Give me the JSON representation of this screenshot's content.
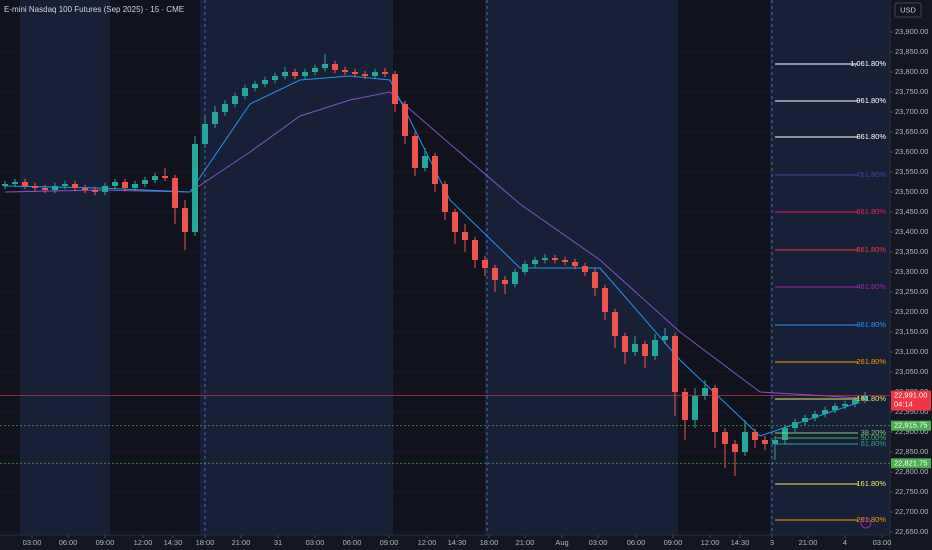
{
  "chart_data": {
    "type": "candlestick",
    "title": "E-mini Nasdaq 100 Futures (Sep 2025) · 15 · CME",
    "currency": "USD",
    "up_color": "#26a69a",
    "down_color": "#ef5350",
    "xlim": [
      0,
      890
    ],
    "ylim": [
      22642.5,
      23980
    ],
    "xticks": [
      {
        "value": 32,
        "label": "03:00"
      },
      {
        "value": 68,
        "label": "06:00"
      },
      {
        "value": 105,
        "label": "09:00"
      },
      {
        "value": 143,
        "label": "12:00"
      },
      {
        "value": 173,
        "label": "14:30"
      },
      {
        "value": 205,
        "label": "18:00"
      },
      {
        "value": 241,
        "label": "21:00"
      },
      {
        "value": 278,
        "label": "31"
      },
      {
        "value": 315,
        "label": "03:00"
      },
      {
        "value": 352,
        "label": "06:00"
      },
      {
        "value": 389,
        "label": "09:00"
      },
      {
        "value": 427,
        "label": "12:00"
      },
      {
        "value": 457,
        "label": "14:30"
      },
      {
        "value": 489,
        "label": "18:00"
      },
      {
        "value": 525,
        "label": "21:00"
      },
      {
        "value": 562,
        "label": "Aug"
      },
      {
        "value": 598,
        "label": "03:00"
      },
      {
        "value": 636,
        "label": "06:00"
      },
      {
        "value": 673,
        "label": "09:00"
      },
      {
        "value": 710,
        "label": "12:00"
      },
      {
        "value": 740,
        "label": "14:30"
      },
      {
        "value": 772,
        "label": "3"
      },
      {
        "value": 808,
        "label": "21:00"
      },
      {
        "value": 845,
        "label": "4"
      },
      {
        "value": 882,
        "label": "03:00"
      }
    ],
    "yticks": [
      {
        "value": 23900,
        "label": "23,900.00"
      },
      {
        "value": 23850,
        "label": "23,850.00"
      },
      {
        "value": 23800,
        "label": "23,800.00"
      },
      {
        "value": 23750,
        "label": "23,750.00"
      },
      {
        "value": 23700,
        "label": "23,700.00"
      },
      {
        "value": 23650,
        "label": "23,650.00"
      },
      {
        "value": 23600,
        "label": "23,600.00"
      },
      {
        "value": 23550,
        "label": "23,550.00"
      },
      {
        "value": 23500,
        "label": "23,500.00"
      },
      {
        "value": 23450,
        "label": "23,450.00"
      },
      {
        "value": 23400,
        "label": "23,400.00"
      },
      {
        "value": 23350,
        "label": "23,350.00"
      },
      {
        "value": 23300,
        "label": "23,300.00"
      },
      {
        "value": 23250,
        "label": "23,250.00"
      },
      {
        "value": 23200,
        "label": "23,200.00"
      },
      {
        "value": 23150,
        "label": "23,150.00"
      },
      {
        "value": 23100,
        "label": "23,100.00"
      },
      {
        "value": 23050,
        "label": "23,050.00"
      },
      {
        "value": 23000,
        "label": "23,000.00"
      },
      {
        "value": 22950,
        "label": "22,950.00"
      },
      {
        "value": 22900,
        "label": "22,900.00"
      },
      {
        "value": 22850,
        "label": "22,850.00"
      },
      {
        "value": 22800,
        "label": "22,800.00"
      },
      {
        "value": 22750,
        "label": "22,750.00"
      },
      {
        "value": 22700,
        "label": "22,700.00"
      },
      {
        "value": 22650,
        "label": "22,650.00"
      }
    ],
    "x": [
      5,
      15,
      25,
      35,
      45,
      55,
      65,
      75,
      85,
      95,
      105,
      115,
      125,
      135,
      145,
      155,
      165,
      175,
      185,
      195,
      205,
      215,
      225,
      235,
      245,
      255,
      265,
      275,
      285,
      295,
      305,
      315,
      325,
      335,
      345,
      355,
      365,
      375,
      385,
      395,
      405,
      415,
      425,
      435,
      445,
      455,
      465,
      475,
      485,
      495,
      505,
      515,
      525,
      535,
      545,
      555,
      565,
      575,
      585,
      595,
      605,
      615,
      625,
      635,
      645,
      655,
      665,
      675,
      685,
      695,
      705,
      715,
      725,
      735,
      745,
      755,
      765,
      775,
      785,
      795,
      805,
      815,
      825,
      835,
      845,
      855,
      865
    ],
    "ohlc": [
      [
        23515,
        23528,
        23507,
        23520
      ],
      [
        23520,
        23533,
        23512,
        23525
      ],
      [
        23525,
        23533,
        23507,
        23515
      ],
      [
        23515,
        23523,
        23502,
        23510
      ],
      [
        23510,
        23518,
        23497,
        23505
      ],
      [
        23505,
        23523,
        23497,
        23515
      ],
      [
        23515,
        23528,
        23507,
        23520
      ],
      [
        23520,
        23528,
        23502,
        23510
      ],
      [
        23510,
        23518,
        23497,
        23505
      ],
      [
        23505,
        23513,
        23492,
        23500
      ],
      [
        23500,
        23523,
        23492,
        23515
      ],
      [
        23515,
        23533,
        23507,
        23525
      ],
      [
        23525,
        23533,
        23502,
        23510
      ],
      [
        23510,
        23528,
        23502,
        23520
      ],
      [
        23520,
        23538,
        23512,
        23530
      ],
      [
        23530,
        23548,
        23522,
        23540
      ],
      [
        23540,
        23560,
        23527,
        23535
      ],
      [
        23535,
        23543,
        23420,
        23460
      ],
      [
        23460,
        23480,
        23355,
        23400
      ],
      [
        23400,
        23640,
        23390,
        23620
      ],
      [
        23620,
        23690,
        23610,
        23670
      ],
      [
        23670,
        23715,
        23660,
        23700
      ],
      [
        23700,
        23730,
        23690,
        23720
      ],
      [
        23720,
        23748,
        23712,
        23740
      ],
      [
        23740,
        23768,
        23732,
        23760
      ],
      [
        23760,
        23778,
        23752,
        23770
      ],
      [
        23770,
        23788,
        23762,
        23780
      ],
      [
        23780,
        23798,
        23772,
        23790
      ],
      [
        23790,
        23812,
        23782,
        23800
      ],
      [
        23800,
        23808,
        23782,
        23790
      ],
      [
        23790,
        23808,
        23782,
        23800
      ],
      [
        23800,
        23818,
        23792,
        23810
      ],
      [
        23810,
        23845,
        23802,
        23820
      ],
      [
        23820,
        23828,
        23797,
        23805
      ],
      [
        23805,
        23813,
        23792,
        23800
      ],
      [
        23800,
        23808,
        23787,
        23795
      ],
      [
        23795,
        23803,
        23782,
        23790
      ],
      [
        23790,
        23808,
        23782,
        23800
      ],
      [
        23800,
        23810,
        23787,
        23795
      ],
      [
        23795,
        23803,
        23700,
        23720
      ],
      [
        23720,
        23728,
        23620,
        23640
      ],
      [
        23640,
        23650,
        23540,
        23560
      ],
      [
        23560,
        23610,
        23552,
        23590
      ],
      [
        23590,
        23598,
        23500,
        23520
      ],
      [
        23520,
        23528,
        23430,
        23450
      ],
      [
        23450,
        23458,
        23370,
        23400
      ],
      [
        23400,
        23420,
        23350,
        23380
      ],
      [
        23380,
        23388,
        23310,
        23330
      ],
      [
        23330,
        23340,
        23290,
        23310
      ],
      [
        23310,
        23318,
        23250,
        23280
      ],
      [
        23280,
        23290,
        23245,
        23270
      ],
      [
        23270,
        23308,
        23262,
        23300
      ],
      [
        23300,
        23328,
        23292,
        23320
      ],
      [
        23320,
        23338,
        23312,
        23330
      ],
      [
        23330,
        23345,
        23322,
        23335
      ],
      [
        23335,
        23343,
        23322,
        23330
      ],
      [
        23330,
        23338,
        23317,
        23325
      ],
      [
        23325,
        23333,
        23307,
        23315
      ],
      [
        23315,
        23323,
        23290,
        23300
      ],
      [
        23300,
        23308,
        23240,
        23260
      ],
      [
        23260,
        23268,
        23180,
        23200
      ],
      [
        23200,
        23208,
        23110,
        23140
      ],
      [
        23140,
        23148,
        23070,
        23100
      ],
      [
        23100,
        23140,
        23090,
        23120
      ],
      [
        23120,
        23128,
        23060,
        23090
      ],
      [
        23090,
        23145,
        23080,
        23130
      ],
      [
        23130,
        23160,
        23120,
        23140
      ],
      [
        23140,
        23148,
        22940,
        23000
      ],
      [
        23000,
        23010,
        22880,
        22930
      ],
      [
        22930,
        23010,
        22910,
        22990
      ],
      [
        22990,
        23030,
        22980,
        23010
      ],
      [
        23010,
        23018,
        22860,
        22900
      ],
      [
        22900,
        22910,
        22810,
        22870
      ],
      [
        22870,
        22880,
        22790,
        22850
      ],
      [
        22850,
        22930,
        22840,
        22900
      ],
      [
        22900,
        22908,
        22860,
        22880
      ],
      [
        22880,
        22890,
        22855,
        22870
      ],
      [
        22870,
        22890,
        22830,
        22880
      ],
      [
        22880,
        22918,
        22870,
        22910
      ],
      [
        22910,
        22933,
        22900,
        22925
      ],
      [
        22925,
        22943,
        22917,
        22935
      ],
      [
        22935,
        22953,
        22927,
        22945
      ],
      [
        22945,
        22963,
        22937,
        22955
      ],
      [
        22955,
        22973,
        22947,
        22965
      ],
      [
        22965,
        22978,
        22957,
        22970
      ],
      [
        22970,
        22988,
        22962,
        22980
      ],
      [
        22980,
        23000,
        22972,
        22991
      ]
    ],
    "moving_averages": [
      {
        "color": "#7e57c2",
        "x": [
          5,
          100,
          190,
          250,
          300,
          350,
          390,
          450,
          520,
          600,
          680,
          760,
          860
        ],
        "values": [
          23500,
          23505,
          23500,
          23600,
          23690,
          23730,
          23750,
          23620,
          23470,
          23330,
          23150,
          23000,
          22985
        ]
      },
      {
        "color": "#2196f3",
        "x": [
          5,
          100,
          190,
          250,
          300,
          350,
          390,
          450,
          520,
          600,
          680,
          760,
          860
        ],
        "values": [
          23515,
          23510,
          23500,
          23720,
          23780,
          23790,
          23780,
          23480,
          23310,
          23310,
          23080,
          22890,
          22975
        ]
      }
    ],
    "fib_levels": [
      {
        "label": "1,061.80%",
        "price": 23820,
        "color": "#ffffff"
      },
      {
        "label": "961.80%",
        "price": 23727.5,
        "color": "#ffffff"
      },
      {
        "label": "861.80%",
        "price": 23637.5,
        "color": "#ffffff"
      },
      {
        "label": "761.80%",
        "price": 23542.5,
        "color": "#3949ab"
      },
      {
        "label": "661.80%",
        "price": 23450,
        "color": "#e91e63"
      },
      {
        "label": "561.80%",
        "price": 23355,
        "color": "#f23645"
      },
      {
        "label": "461.80%",
        "price": 23262.5,
        "color": "#9c27b0"
      },
      {
        "label": "361.80%",
        "price": 23167.5,
        "color": "#2196f3"
      },
      {
        "label": "261.80%",
        "price": 23075,
        "color": "#ff9800"
      },
      {
        "label": "161.80%",
        "price": 22982.5,
        "color": "#f5e663"
      },
      {
        "label": "38.20%",
        "price": 22897.5,
        "color": "#81c784"
      },
      {
        "label": "50.00%",
        "price": 22885,
        "color": "#4caf50"
      },
      {
        "label": "61.80%",
        "price": 22870,
        "color": "#26a69a"
      },
      {
        "label": "161.80%",
        "price": 22770,
        "color": "#f5e663"
      },
      {
        "label": "261.80%",
        "price": 22680,
        "color": "#ff9800"
      }
    ],
    "price_labels": [
      {
        "value": 22991,
        "label": "22,991.00",
        "color": "#f23645",
        "countdown": "04:14"
      },
      {
        "value": 22915.75,
        "label": "22,915.75",
        "color": "#4caf50"
      },
      {
        "value": 22821.75,
        "label": "22,821.75",
        "color": "#4caf50"
      }
    ]
  }
}
